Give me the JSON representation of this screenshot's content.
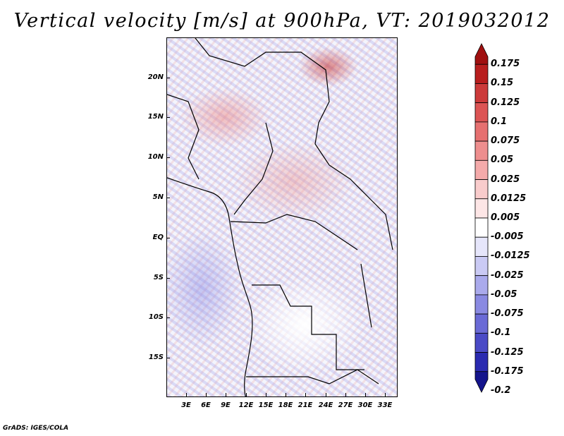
{
  "title": "Vertical velocity [m/s] at 900hPa, VT: 2019032012",
  "credit": "GrADS: IGES/COLA",
  "lat_ticks": [
    "20N",
    "15N",
    "10N",
    "5N",
    "EQ",
    "5S",
    "10S",
    "15S"
  ],
  "lon_ticks": [
    "3E",
    "6E",
    "9E",
    "12E",
    "15E",
    "18E",
    "21E",
    "24E",
    "27E",
    "30E",
    "33E"
  ],
  "colorbar": {
    "labels": [
      "0.175",
      "0.15",
      "0.125",
      "0.1",
      "0.075",
      "0.05",
      "0.025",
      "0.0125",
      "0.005",
      "-0.005",
      "-0.0125",
      "-0.025",
      "-0.05",
      "-0.075",
      "-0.1",
      "-0.125",
      "-0.175",
      "-0.2"
    ],
    "colors": [
      "#a01010",
      "#b81e1e",
      "#cc3a3a",
      "#dc5454",
      "#e67070",
      "#ee8e8e",
      "#f4aaaa",
      "#f9cccc",
      "#fde6e6",
      "#ffffff",
      "#e6e6fb",
      "#cacaf4",
      "#aaaaec",
      "#8a8ae2",
      "#6a6ad6",
      "#4a4ac6",
      "#2a2ab0",
      "#14148c"
    ]
  }
}
